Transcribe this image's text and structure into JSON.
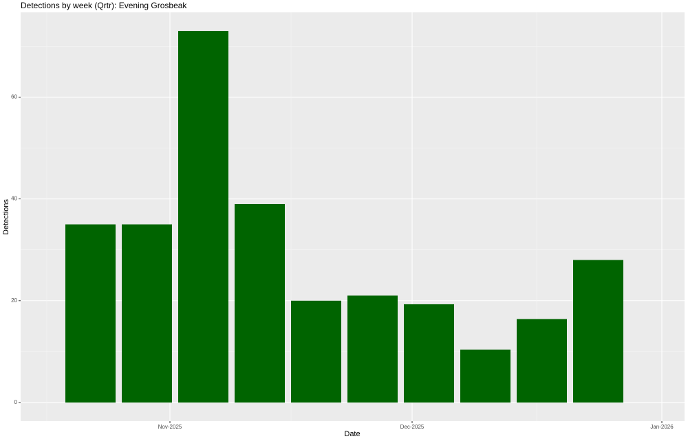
{
  "chart_data": {
    "type": "bar",
    "title": "Detections by week (Qrtr): Evening Grosbeak",
    "x_label": "Date",
    "y_label": "Detections",
    "categories": [
      null,
      null,
      null,
      null,
      null,
      null,
      null,
      null,
      null,
      null
    ],
    "values": [
      35,
      35,
      73,
      39,
      20,
      21,
      19.3,
      10.4,
      16.4,
      28
    ],
    "color": "#006400",
    "xticks": [
      "Nov-2025",
      "Dec-2025",
      "Jan-2026"
    ],
    "ylim": [
      -3.65,
      76.65
    ],
    "yticks": [
      0,
      20,
      40,
      60
    ],
    "grid": true
  }
}
